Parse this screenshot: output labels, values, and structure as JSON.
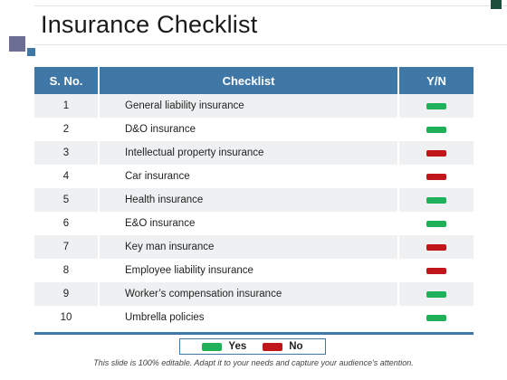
{
  "slide": {
    "title": "Insurance Checklist",
    "footer": "This slide is 100% editable. Adapt it to your needs and capture your audience's attention."
  },
  "table": {
    "headers": [
      "S. No.",
      "Checklist",
      "Y/N"
    ],
    "rows": [
      {
        "no": "1",
        "item": "General liability insurance",
        "status": "yes"
      },
      {
        "no": "2",
        "item": "D&O insurance",
        "status": "yes"
      },
      {
        "no": "3",
        "item": "Intellectual property insurance",
        "status": "no"
      },
      {
        "no": "4",
        "item": "Car insurance",
        "status": "no"
      },
      {
        "no": "5",
        "item": "Health insurance",
        "status": "yes"
      },
      {
        "no": "6",
        "item": "E&O insurance",
        "status": "yes"
      },
      {
        "no": "7",
        "item": "Key man insurance",
        "status": "no"
      },
      {
        "no": "8",
        "item": "Employee liability insurance",
        "status": "no"
      },
      {
        "no": "9",
        "item": "Worker’s compensation insurance",
        "status": "yes"
      },
      {
        "no": "10",
        "item": "Umbrella policies",
        "status": "yes"
      }
    ]
  },
  "legend": {
    "yes_label": "Yes",
    "no_label": "No"
  },
  "colors": {
    "header_blue": "#3f78a6",
    "yes_green": "#1fb15a",
    "no_red": "#c0161b"
  }
}
